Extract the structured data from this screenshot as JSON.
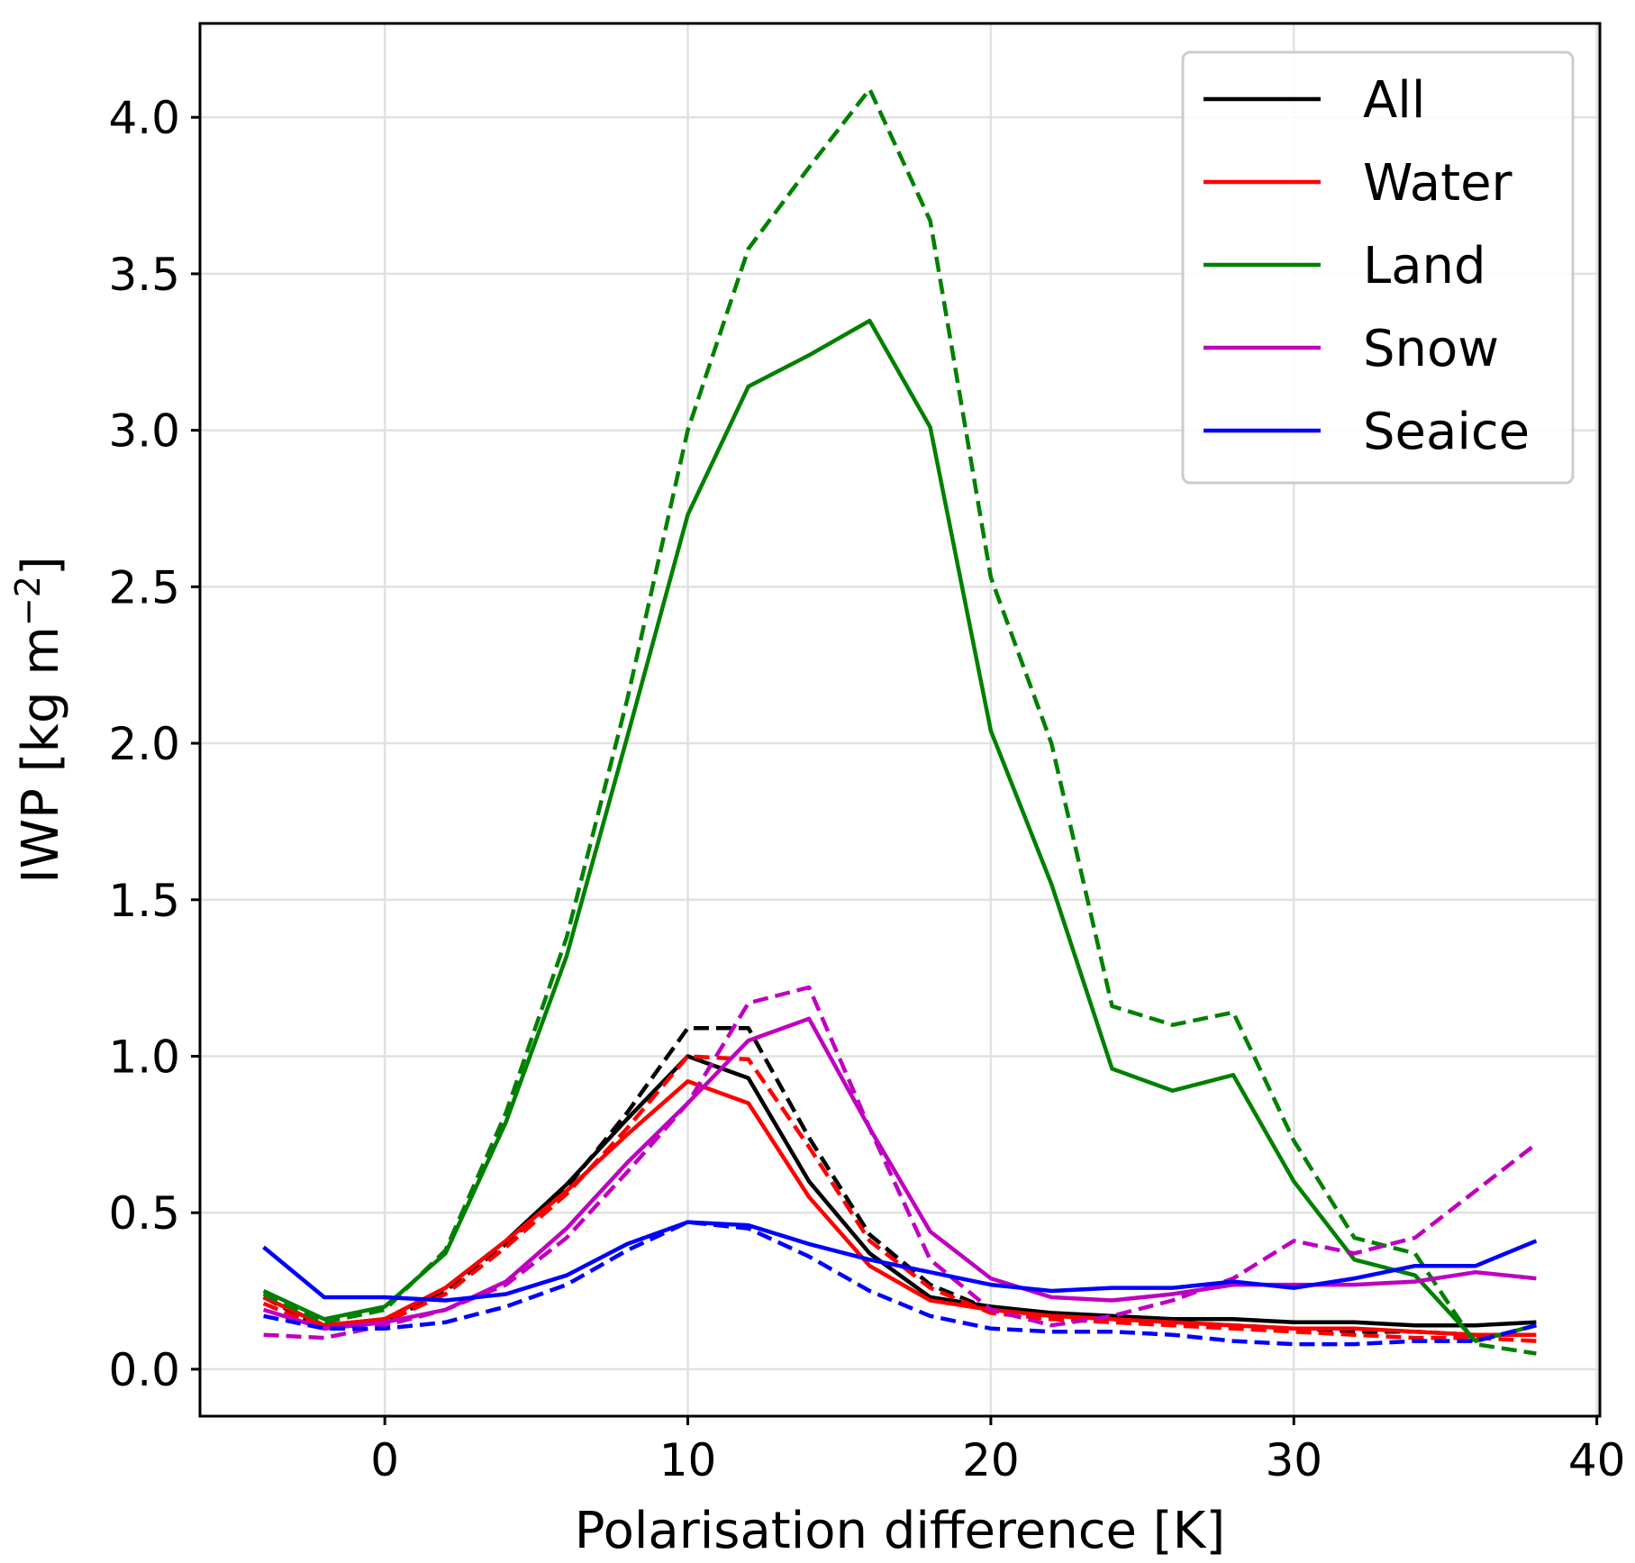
{
  "chart_data": {
    "type": "line",
    "title": "",
    "xlabel": "Polarisation difference [K]",
    "ylabel_main": "IWP [kg m",
    "ylabel_exp": "−2",
    "ylabel_close": "]",
    "xlim": [
      -6.1,
      40.1
    ],
    "ylim": [
      -0.15,
      4.3
    ],
    "xticks": [
      0,
      10,
      20,
      30,
      40
    ],
    "xtick_labels": [
      "0",
      "10",
      "20",
      "30",
      "40"
    ],
    "yticks": [
      0.0,
      0.5,
      1.0,
      1.5,
      2.0,
      2.5,
      3.0,
      3.5,
      4.0
    ],
    "ytick_labels": [
      "0.0",
      "0.5",
      "1.0",
      "1.5",
      "2.0",
      "2.5",
      "3.0",
      "3.5",
      "4.0"
    ],
    "grid": true,
    "legend_position": "top-right",
    "x": [
      -4,
      -2,
      0,
      2,
      4,
      6,
      8,
      10,
      12,
      14,
      16,
      18,
      20,
      22,
      24,
      26,
      28,
      30,
      32,
      34,
      36,
      38
    ],
    "series": [
      {
        "name": "All",
        "color": "#000000",
        "style": "solid",
        "in_legend": true,
        "values": [
          0.23,
          0.14,
          0.16,
          0.26,
          0.41,
          0.59,
          0.8,
          1.0,
          0.93,
          0.6,
          0.37,
          0.23,
          0.2,
          0.18,
          0.17,
          0.16,
          0.16,
          0.15,
          0.15,
          0.14,
          0.14,
          0.15
        ]
      },
      {
        "name": "All",
        "color": "#000000",
        "style": "dashed",
        "in_legend": false,
        "values": [
          0.23,
          0.13,
          0.15,
          0.25,
          0.4,
          0.58,
          0.82,
          1.09,
          1.09,
          0.74,
          0.43,
          0.27,
          0.19,
          0.17,
          0.16,
          0.15,
          0.14,
          0.13,
          0.12,
          0.12,
          0.11,
          0.11
        ]
      },
      {
        "name": "Water",
        "color": "#ff0000",
        "style": "solid",
        "in_legend": true,
        "values": [
          0.23,
          0.14,
          0.16,
          0.26,
          0.41,
          0.57,
          0.75,
          0.92,
          0.85,
          0.55,
          0.33,
          0.22,
          0.19,
          0.17,
          0.16,
          0.15,
          0.14,
          0.13,
          0.13,
          0.12,
          0.11,
          0.11
        ]
      },
      {
        "name": "Water",
        "color": "#ff0000",
        "style": "dashed",
        "in_legend": false,
        "values": [
          0.21,
          0.13,
          0.15,
          0.24,
          0.39,
          0.56,
          0.77,
          1.0,
          0.99,
          0.71,
          0.41,
          0.26,
          0.18,
          0.16,
          0.15,
          0.14,
          0.13,
          0.12,
          0.11,
          0.1,
          0.1,
          0.09
        ]
      },
      {
        "name": "Land",
        "color": "#008000",
        "style": "solid",
        "in_legend": true,
        "values": [
          0.25,
          0.16,
          0.2,
          0.37,
          0.79,
          1.32,
          2.02,
          2.73,
          3.14,
          3.24,
          3.35,
          3.01,
          2.04,
          1.55,
          0.96,
          0.89,
          0.94,
          0.6,
          0.35,
          0.3,
          0.09,
          0.14
        ]
      },
      {
        "name": "Land",
        "color": "#008000",
        "style": "dashed",
        "in_legend": false,
        "values": [
          0.24,
          0.15,
          0.19,
          0.38,
          0.82,
          1.38,
          2.14,
          3.0,
          3.58,
          3.84,
          4.09,
          3.67,
          2.53,
          2.0,
          1.16,
          1.1,
          1.14,
          0.73,
          0.42,
          0.37,
          0.08,
          0.05
        ]
      },
      {
        "name": "Snow",
        "color": "#bf00bf",
        "style": "solid",
        "in_legend": true,
        "values": [
          0.19,
          0.13,
          0.15,
          0.19,
          0.28,
          0.45,
          0.66,
          0.85,
          1.05,
          1.12,
          0.77,
          0.44,
          0.29,
          0.23,
          0.22,
          0.24,
          0.27,
          0.27,
          0.27,
          0.28,
          0.31,
          0.29
        ]
      },
      {
        "name": "Snow",
        "color": "#bf00bf",
        "style": "dashed",
        "in_legend": false,
        "values": [
          0.11,
          0.1,
          0.14,
          0.19,
          0.27,
          0.42,
          0.63,
          0.85,
          1.17,
          1.22,
          0.77,
          0.35,
          0.19,
          0.14,
          0.17,
          0.22,
          0.29,
          0.41,
          0.37,
          0.42,
          0.57,
          0.72
        ]
      },
      {
        "name": "Seaice",
        "color": "#0000ff",
        "style": "solid",
        "in_legend": true,
        "values": [
          0.39,
          0.23,
          0.23,
          0.22,
          0.24,
          0.3,
          0.4,
          0.47,
          0.46,
          0.4,
          0.35,
          0.31,
          0.27,
          0.25,
          0.26,
          0.26,
          0.28,
          0.26,
          0.29,
          0.33,
          0.33,
          0.41
        ]
      },
      {
        "name": "Seaice",
        "color": "#0000ff",
        "style": "dashed",
        "in_legend": false,
        "values": [
          0.17,
          0.13,
          0.13,
          0.15,
          0.2,
          0.27,
          0.38,
          0.47,
          0.45,
          0.36,
          0.25,
          0.17,
          0.13,
          0.12,
          0.12,
          0.11,
          0.09,
          0.08,
          0.08,
          0.09,
          0.09,
          0.14
        ]
      }
    ]
  }
}
